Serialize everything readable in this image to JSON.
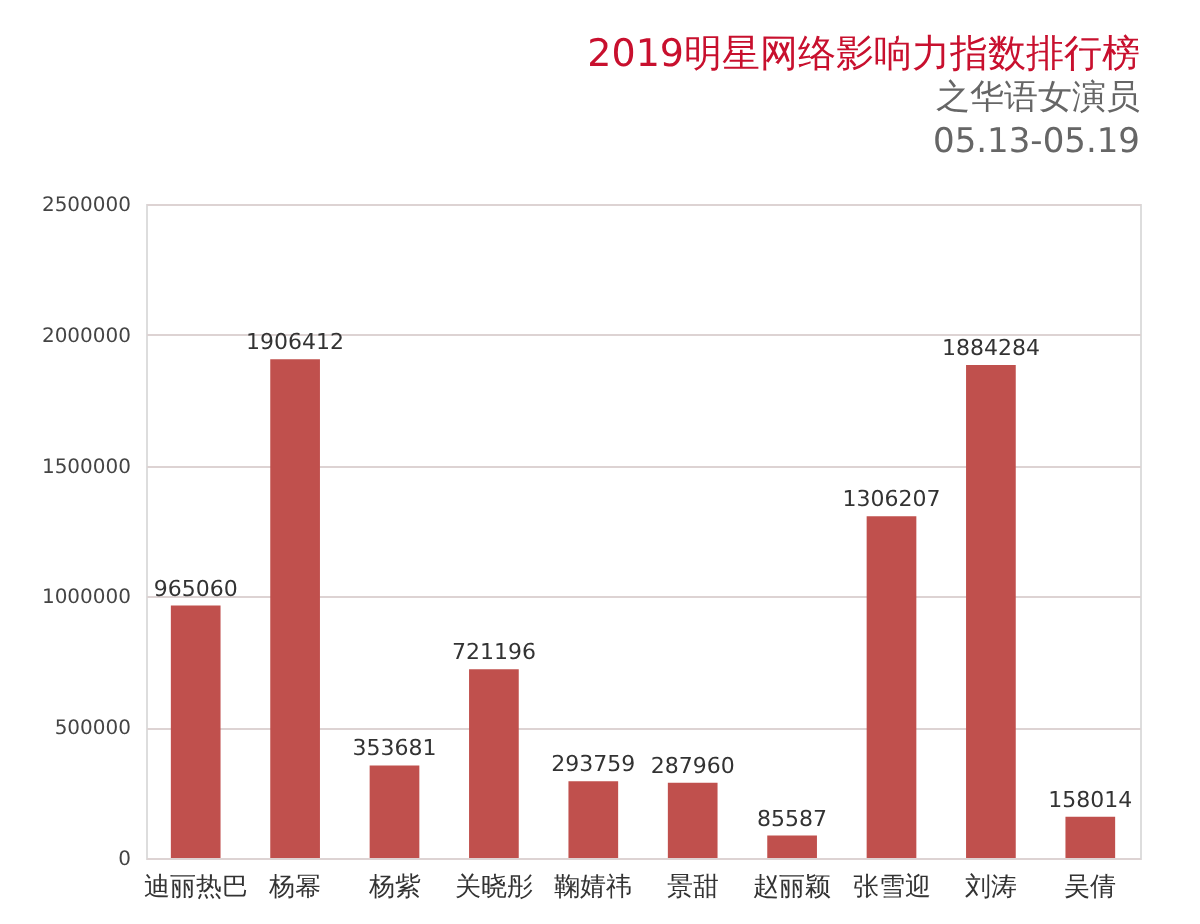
{
  "chart_data": {
    "type": "bar",
    "title": "2019明星网络影响力指数排行榜",
    "subtitle": "之华语女演员",
    "annotations": [
      "05.13-05.19"
    ],
    "categories": [
      "迪丽热巴",
      "杨幂",
      "杨紫",
      "关晓彤",
      "鞠婧祎",
      "景甜",
      "赵丽颖",
      "张雪迎",
      "刘涛",
      "吴倩"
    ],
    "values": [
      965060,
      1906412,
      353681,
      721196,
      293759,
      287960,
      85587,
      1306207,
      1884284,
      158014
    ],
    "color": "#c0504d",
    "ylim": [
      0,
      2500000
    ],
    "yticks": [
      0,
      500000,
      1000000,
      1500000,
      2000000,
      2500000
    ],
    "grid": "y",
    "data_labels": true
  }
}
